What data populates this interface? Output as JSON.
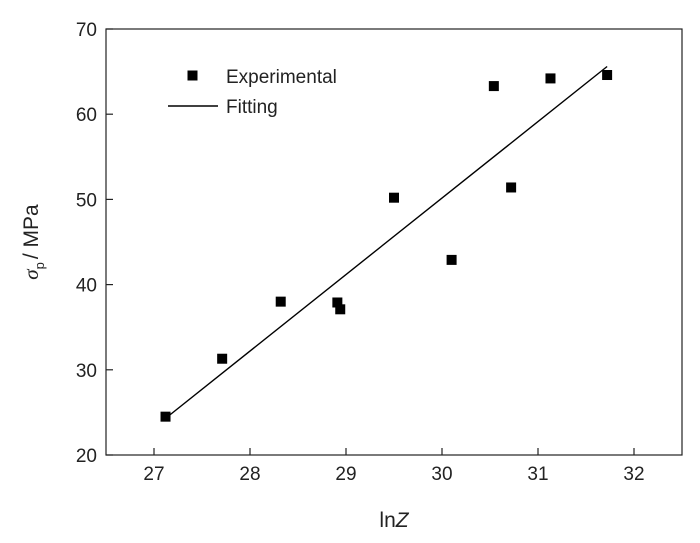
{
  "chart_data": {
    "type": "scatter",
    "xlabel": "lnZ",
    "xlabel_parts": {
      "main": "ln",
      "var": "Z"
    },
    "ylabel_parts": {
      "symbol": "σ",
      "subscript": "p",
      "unit": "/ MPa"
    },
    "xlim": [
      26.5,
      32.5
    ],
    "ylim": [
      20,
      70
    ],
    "xticks": [
      27,
      28,
      29,
      30,
      31,
      32
    ],
    "yticks": [
      20,
      30,
      40,
      50,
      60,
      70
    ],
    "legend_position": "top-left",
    "series": [
      {
        "name": "Experimental",
        "marker": "square",
        "color": "#000000",
        "x": [
          27.12,
          27.71,
          28.32,
          28.91,
          28.94,
          29.5,
          30.1,
          30.54,
          30.72,
          31.13,
          31.72
        ],
        "y": [
          24.5,
          31.3,
          38.0,
          37.9,
          37.1,
          50.2,
          42.9,
          63.3,
          51.4,
          64.2,
          64.6
        ]
      },
      {
        "name": "Fitting",
        "marker": "line",
        "color": "#000000",
        "x": [
          27.12,
          31.72
        ],
        "y": [
          24.3,
          65.6
        ]
      }
    ]
  }
}
